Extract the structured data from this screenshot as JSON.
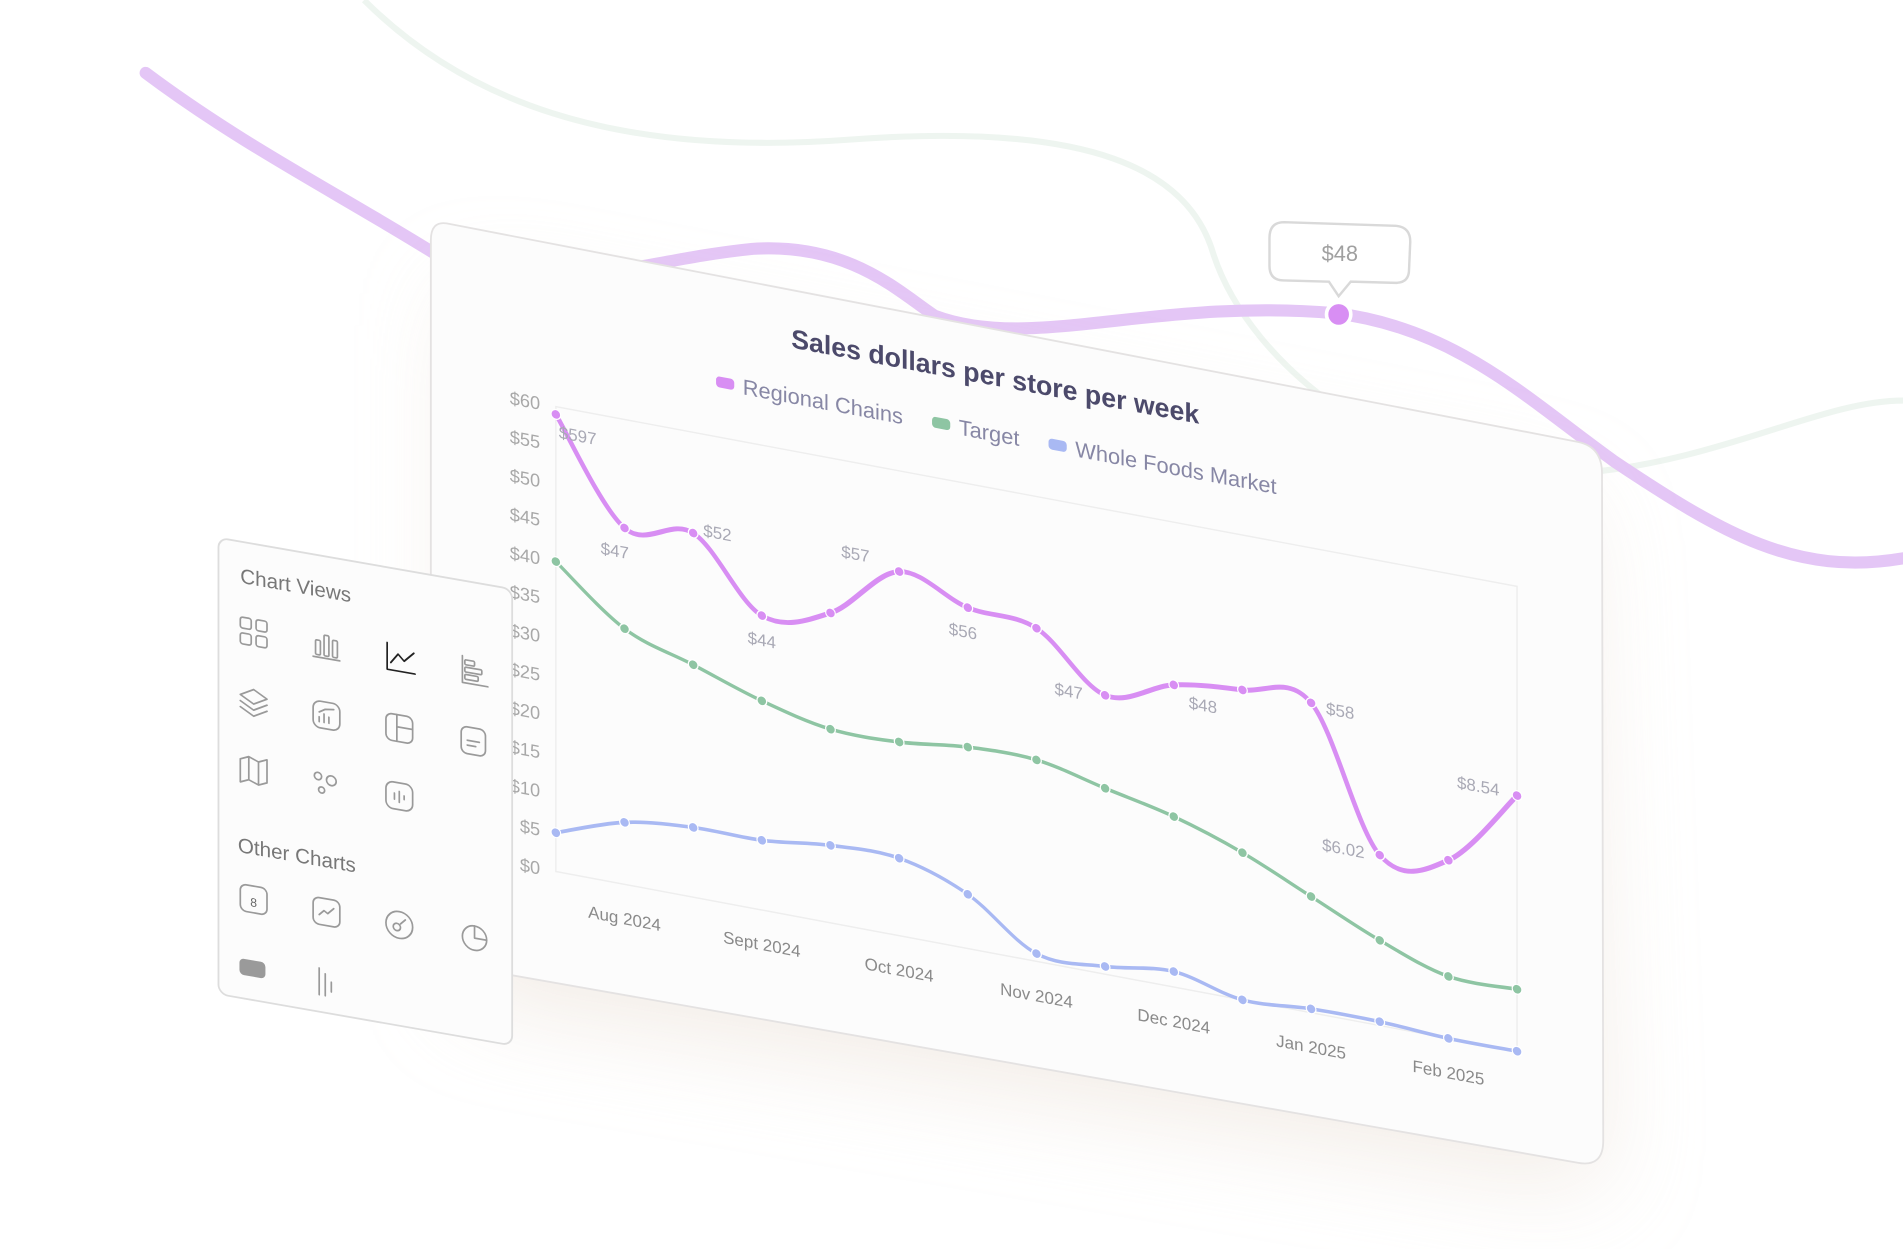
{
  "chart_data": {
    "type": "line",
    "title": "Sales dollars per store per week",
    "categories": [
      null,
      "Aug 2024",
      null,
      "Sept 2024",
      null,
      "Oct 2024",
      null,
      "Nov 2024",
      null,
      "Dec 2024",
      null,
      "Jan 2025",
      null,
      "Feb 2025",
      null
    ],
    "series": [
      {
        "name": "Regional Chains",
        "color": "#d88ef3",
        "values": [
          59,
          46,
          47,
          38,
          40,
          47,
          44,
          43,
          36,
          39,
          40,
          40,
          22,
          23,
          33
        ]
      },
      {
        "name": "Target",
        "color": "#8ec5a3",
        "values": [
          40,
          33,
          30,
          27,
          25,
          25,
          26,
          26,
          24,
          22,
          19,
          15,
          11,
          8,
          8
        ]
      },
      {
        "name": "Whole Foods Market",
        "color": "#a9b9f3",
        "values": [
          5,
          8,
          9,
          9,
          10,
          10,
          7,
          1,
          1,
          2,
          0,
          0.5,
          0.5,
          0,
          0
        ]
      }
    ],
    "annotations": [
      "$597",
      "$47",
      "$52",
      "$44",
      "$57",
      "$56",
      "$47",
      "$48",
      "$58",
      "$6.02",
      "$8.54"
    ],
    "ylim": [
      0,
      60
    ],
    "yticks": [
      {
        "value": 0,
        "label": "$0"
      },
      {
        "value": 5,
        "label": "$5"
      },
      {
        "value": 10,
        "label": "$10"
      },
      {
        "value": 15,
        "label": "$15"
      },
      {
        "value": 20,
        "label": "$20"
      },
      {
        "value": 25,
        "label": "$25"
      },
      {
        "value": 30,
        "label": "$30"
      },
      {
        "value": 35,
        "label": "$35"
      },
      {
        "value": 40,
        "label": "$40"
      },
      {
        "value": 45,
        "label": "$45"
      },
      {
        "value": 50,
        "label": "$50"
      },
      {
        "value": 55,
        "label": "$55"
      },
      {
        "value": 60,
        "label": "$60"
      }
    ],
    "grid": false
  },
  "callout": "$48",
  "panel": {
    "title": "Chart Views",
    "section_title": "Other Charts",
    "badge": "8"
  }
}
